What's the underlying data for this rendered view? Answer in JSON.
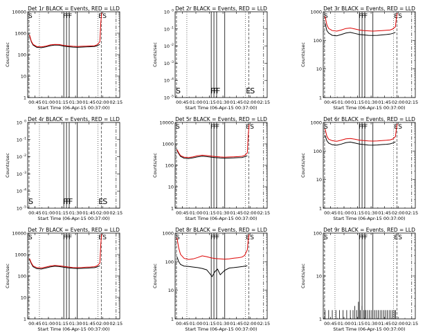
{
  "figure": {
    "title_template": "{det} BLACK = Events, RED = LLD",
    "xlabel": "Start Time (06-Apr-15 00:37:00)",
    "ylabel": "Counts/sec",
    "x_tick_labels": [
      "00:45",
      "01:00",
      "01:15",
      "01:30",
      "01:45",
      "02:00",
      "02:15"
    ],
    "y_ticks_log": [
      "1",
      "10",
      "100",
      "1000",
      "10000"
    ],
    "y_ticks_blank": [
      "10",
      "10",
      "10",
      "10",
      "10",
      "10"
    ],
    "y_ticks_blank_exp": [
      "-5",
      "-4",
      "-3",
      "-2",
      "-1",
      "0"
    ],
    "marker_labels": {
      "s": "S",
      "e": "E",
      "f": "F"
    },
    "colors": {
      "events": "#000000",
      "lld": "#dd0000",
      "axes": "#000000",
      "background": "#ffffff"
    }
  },
  "chart_data": [
    {
      "type": "line",
      "detector": "Det 1r",
      "title": "Det 1r BLACK = Events, RED = LLD",
      "scale": "log",
      "ylim": [
        1,
        10000
      ],
      "xlabel": "Start Time (06-Apr-15 00:37:00)",
      "ylabel": "Counts/sec",
      "x_unit": "minutes after 00:37:00",
      "xlim": [
        0,
        102
      ],
      "x_ticks": [
        8,
        23,
        38,
        53,
        68,
        83,
        98
      ],
      "markers": {
        "S": [
          1.5
        ],
        "E": [
          81.5
        ],
        "F": [
          40,
          43,
          46,
          55
        ]
      },
      "series": [
        {
          "name": "Events",
          "x": [
            2,
            4,
            6,
            10,
            15,
            20,
            25,
            30,
            35,
            40,
            45,
            50,
            55,
            60,
            65,
            70,
            74,
            77,
            80
          ],
          "values": [
            800,
            400,
            280,
            220,
            210,
            230,
            260,
            280,
            275,
            250,
            235,
            225,
            220,
            225,
            230,
            235,
            240,
            260,
            300
          ]
        },
        {
          "name": "LLD",
          "x": [
            2,
            4,
            6,
            10,
            15,
            20,
            25,
            30,
            35,
            40,
            45,
            50,
            55,
            60,
            65,
            70,
            74,
            77,
            80,
            81,
            82
          ],
          "values": [
            850,
            430,
            300,
            240,
            230,
            250,
            285,
            300,
            295,
            270,
            255,
            245,
            240,
            245,
            250,
            255,
            260,
            290,
            400,
            3000,
            9000
          ]
        }
      ]
    },
    {
      "type": "line",
      "detector": "Det 2r",
      "title": "Det 2r BLACK = Events, RED = LLD",
      "scale": "blank",
      "ylim": [
        -5,
        0
      ],
      "xlabel": "Start Time (06-Apr-15 00:37:00)",
      "ylabel": "Counts/sec",
      "x_unit": "minutes after 00:37:00",
      "xlim": [
        0,
        102
      ],
      "x_ticks": [
        8,
        23,
        38,
        53,
        68,
        83,
        98
      ],
      "markers": {
        "S": [
          1.5
        ],
        "E": [
          81.5
        ],
        "F": [
          40,
          43,
          46,
          55
        ]
      },
      "series": []
    },
    {
      "type": "line",
      "detector": "Det 3r",
      "title": "Det 3r BLACK = Events, RED = LLD",
      "scale": "log",
      "ylim": [
        1,
        1000
      ],
      "xlabel": "Start Time (06-Apr-15 00:37:00)",
      "ylabel": "Counts/sec",
      "x_unit": "minutes after 00:37:00",
      "xlim": [
        0,
        102
      ],
      "x_ticks": [
        8,
        23,
        38,
        53,
        68,
        83,
        98
      ],
      "markers": {
        "S": [
          1.5
        ],
        "E": [
          81.5
        ],
        "F": [
          40,
          43,
          46,
          55
        ]
      },
      "series": [
        {
          "name": "Events",
          "x": [
            2,
            4,
            6,
            10,
            15,
            20,
            25,
            30,
            35,
            40,
            45,
            50,
            55,
            60,
            65,
            70,
            74,
            77,
            80
          ],
          "values": [
            400,
            220,
            180,
            150,
            145,
            160,
            180,
            190,
            175,
            160,
            155,
            150,
            148,
            150,
            155,
            160,
            165,
            175,
            190
          ]
        },
        {
          "name": "LLD",
          "x": [
            2,
            4,
            6,
            10,
            15,
            20,
            25,
            30,
            35,
            40,
            45,
            50,
            55,
            60,
            65,
            70,
            74,
            77,
            80,
            81,
            82
          ],
          "values": [
            700,
            350,
            260,
            220,
            210,
            230,
            260,
            270,
            250,
            230,
            220,
            215,
            210,
            215,
            220,
            225,
            230,
            250,
            300,
            600,
            900
          ]
        }
      ]
    },
    {
      "type": "line",
      "detector": "Det 4r",
      "title": "Det 4r BLACK = Events, RED = LLD",
      "scale": "blank",
      "ylim": [
        -5,
        0
      ],
      "xlabel": "Start Time (06-Apr-15 00:37:00)",
      "ylabel": "Counts/sec",
      "x_unit": "minutes after 00:37:00",
      "xlim": [
        0,
        102
      ],
      "x_ticks": [
        8,
        23,
        38,
        53,
        68,
        83,
        98
      ],
      "markers": {
        "S": [
          1.5
        ],
        "E": [
          81.5
        ],
        "F": [
          40,
          43,
          46,
          55
        ]
      },
      "series": []
    },
    {
      "type": "line",
      "detector": "Det 5r",
      "title": "Det 5r BLACK = Events, RED = LLD",
      "scale": "log",
      "ylim": [
        1,
        10000
      ],
      "xlabel": "Start Time (06-Apr-15 00:37:00)",
      "ylabel": "Counts/sec",
      "x_unit": "minutes after 00:37:00",
      "xlim": [
        0,
        102
      ],
      "x_ticks": [
        8,
        23,
        38,
        53,
        68,
        83,
        98
      ],
      "markers": {
        "S": [
          1.5
        ],
        "E": [
          81.5
        ],
        "F": [
          40,
          43,
          46,
          55
        ]
      },
      "series": [
        {
          "name": "Events",
          "x": [
            2,
            4,
            6,
            10,
            15,
            20,
            25,
            30,
            35,
            40,
            45,
            50,
            55,
            60,
            65,
            70,
            74,
            77,
            80
          ],
          "values": [
            500,
            350,
            260,
            215,
            205,
            225,
            250,
            265,
            255,
            240,
            228,
            220,
            215,
            218,
            222,
            228,
            232,
            250,
            280
          ]
        },
        {
          "name": "LLD",
          "x": [
            2,
            4,
            6,
            10,
            15,
            20,
            25,
            30,
            35,
            40,
            45,
            50,
            55,
            60,
            65,
            70,
            74,
            77,
            80,
            81,
            82
          ],
          "values": [
            550,
            380,
            285,
            240,
            230,
            250,
            280,
            295,
            285,
            268,
            255,
            245,
            240,
            245,
            250,
            255,
            262,
            285,
            380,
            2500,
            8000
          ]
        }
      ]
    },
    {
      "type": "line",
      "detector": "Det 6r",
      "title": "Det 6r BLACK = Events, RED = LLD",
      "scale": "log",
      "ylim": [
        1,
        1000
      ],
      "xlabel": "Start Time (06-Apr-15 00:37:00)",
      "ylabel": "Counts/sec",
      "x_unit": "minutes after 00:37:00",
      "xlim": [
        0,
        102
      ],
      "x_ticks": [
        8,
        23,
        38,
        53,
        68,
        83,
        98
      ],
      "markers": {
        "S": [
          1.5
        ],
        "E": [
          81.5
        ],
        "F": [
          40,
          43,
          46,
          55
        ]
      },
      "series": [
        {
          "name": "Events",
          "x": [
            2,
            4,
            6,
            10,
            15,
            20,
            25,
            30,
            35,
            40,
            45,
            50,
            55,
            60,
            65,
            70,
            74,
            77,
            80
          ],
          "values": [
            350,
            230,
            190,
            165,
            160,
            175,
            195,
            205,
            190,
            175,
            168,
            162,
            160,
            163,
            168,
            172,
            178,
            190,
            210
          ]
        },
        {
          "name": "LLD",
          "x": [
            2,
            4,
            6,
            10,
            15,
            20,
            25,
            30,
            35,
            40,
            45,
            50,
            55,
            60,
            65,
            70,
            74,
            77,
            80,
            81,
            82
          ],
          "values": [
            600,
            330,
            260,
            230,
            220,
            240,
            265,
            275,
            258,
            240,
            232,
            225,
            222,
            226,
            232,
            238,
            245,
            262,
            320,
            600,
            900
          ]
        }
      ]
    },
    {
      "type": "line",
      "detector": "Det 7r",
      "title": "Det 7r BLACK = Events, RED = LLD",
      "scale": "log",
      "ylim": [
        1,
        10000
      ],
      "xlabel": "Start Time (06-Apr-15 00:37:00)",
      "ylabel": "Counts/sec",
      "x_unit": "minutes after 00:37:00",
      "xlim": [
        0,
        102
      ],
      "x_ticks": [
        8,
        23,
        38,
        53,
        68,
        83,
        98
      ],
      "markers": {
        "S": [
          1.5
        ],
        "E": [
          81.5
        ],
        "F": [
          40,
          43,
          46,
          55
        ]
      },
      "series": [
        {
          "name": "Events",
          "x": [
            2,
            4,
            6,
            10,
            15,
            20,
            25,
            30,
            35,
            40,
            45,
            50,
            55,
            60,
            65,
            70,
            74,
            77,
            80
          ],
          "values": [
            600,
            380,
            270,
            220,
            210,
            235,
            265,
            285,
            275,
            255,
            238,
            228,
            222,
            226,
            232,
            238,
            244,
            265,
            300
          ]
        },
        {
          "name": "LLD",
          "x": [
            2,
            4,
            6,
            10,
            15,
            20,
            25,
            30,
            35,
            40,
            45,
            50,
            55,
            60,
            65,
            70,
            74,
            77,
            80,
            81,
            82
          ],
          "values": [
            650,
            410,
            295,
            245,
            235,
            260,
            292,
            310,
            300,
            280,
            262,
            250,
            245,
            250,
            256,
            262,
            270,
            295,
            400,
            3000,
            9000
          ]
        }
      ]
    },
    {
      "type": "line",
      "detector": "Det 8r",
      "title": "Det 8r BLACK = Events, RED = LLD",
      "scale": "log",
      "ylim": [
        1,
        1000
      ],
      "xlabel": "Start Time (06-Apr-15 00:37:00)",
      "ylabel": "Counts/sec",
      "x_unit": "minutes after 00:37:00",
      "xlim": [
        0,
        102
      ],
      "x_ticks": [
        8,
        23,
        38,
        53,
        68,
        83,
        98
      ],
      "markers": {
        "S": [
          1.5
        ],
        "E": [
          81.5
        ],
        "F": [
          40,
          43,
          46,
          55
        ]
      },
      "series": [
        {
          "name": "Events",
          "x": [
            2,
            4,
            6,
            10,
            15,
            20,
            25,
            30,
            35,
            38,
            41,
            44,
            47,
            50,
            55,
            60,
            65,
            70,
            75,
            80
          ],
          "values": [
            150,
            100,
            80,
            70,
            68,
            65,
            62,
            58,
            52,
            40,
            30,
            45,
            55,
            35,
            50,
            60,
            62,
            65,
            68,
            72
          ]
        },
        {
          "name": "LLD",
          "x": [
            2,
            4,
            6,
            10,
            15,
            20,
            25,
            30,
            35,
            40,
            45,
            50,
            55,
            60,
            65,
            70,
            74,
            77,
            80,
            81,
            82
          ],
          "values": [
            700,
            300,
            180,
            130,
            120,
            125,
            140,
            160,
            150,
            135,
            128,
            125,
            122,
            126,
            132,
            138,
            145,
            165,
            260,
            600,
            900
          ]
        }
      ]
    },
    {
      "type": "line",
      "detector": "Det 9r",
      "title": "Det 9r BLACK = Events, RED = LLD",
      "scale": "log",
      "ylim": [
        1,
        100
      ],
      "xlabel": "Start Time (06-Apr-15 00:37:00)",
      "ylabel": "Counts/sec",
      "x_unit": "minutes after 00:37:00",
      "xlim": [
        0,
        102
      ],
      "x_ticks": [
        8,
        23,
        38,
        53,
        68,
        83,
        98
      ],
      "markers": {
        "S": [
          1.5
        ],
        "E": [
          81.5
        ],
        "F": [
          40,
          43,
          46,
          55
        ]
      },
      "series": [
        {
          "name": "Events",
          "x": [
            2,
            6,
            10,
            14,
            18,
            22,
            26,
            30,
            33,
            35,
            37,
            39,
            41,
            43,
            45,
            47,
            49,
            51,
            53,
            55,
            57,
            59,
            61,
            63,
            65,
            67,
            69,
            71,
            73,
            75,
            77,
            79,
            80
          ],
          "values": [
            1.6,
            1.6,
            1.6,
            1.6,
            1.6,
            1.6,
            1.6,
            1.6,
            1.6,
            2.0,
            1.6,
            2.5,
            1.6,
            2.0,
            1.6,
            1.6,
            1.6,
            1.6,
            1.6,
            1.6,
            1.6,
            1.6,
            1.6,
            1.6,
            1.6,
            1.6,
            1.6,
            1.6,
            1.6,
            1.6,
            1.6,
            1.6,
            1.6
          ],
          "style": "spikes"
        }
      ]
    }
  ]
}
